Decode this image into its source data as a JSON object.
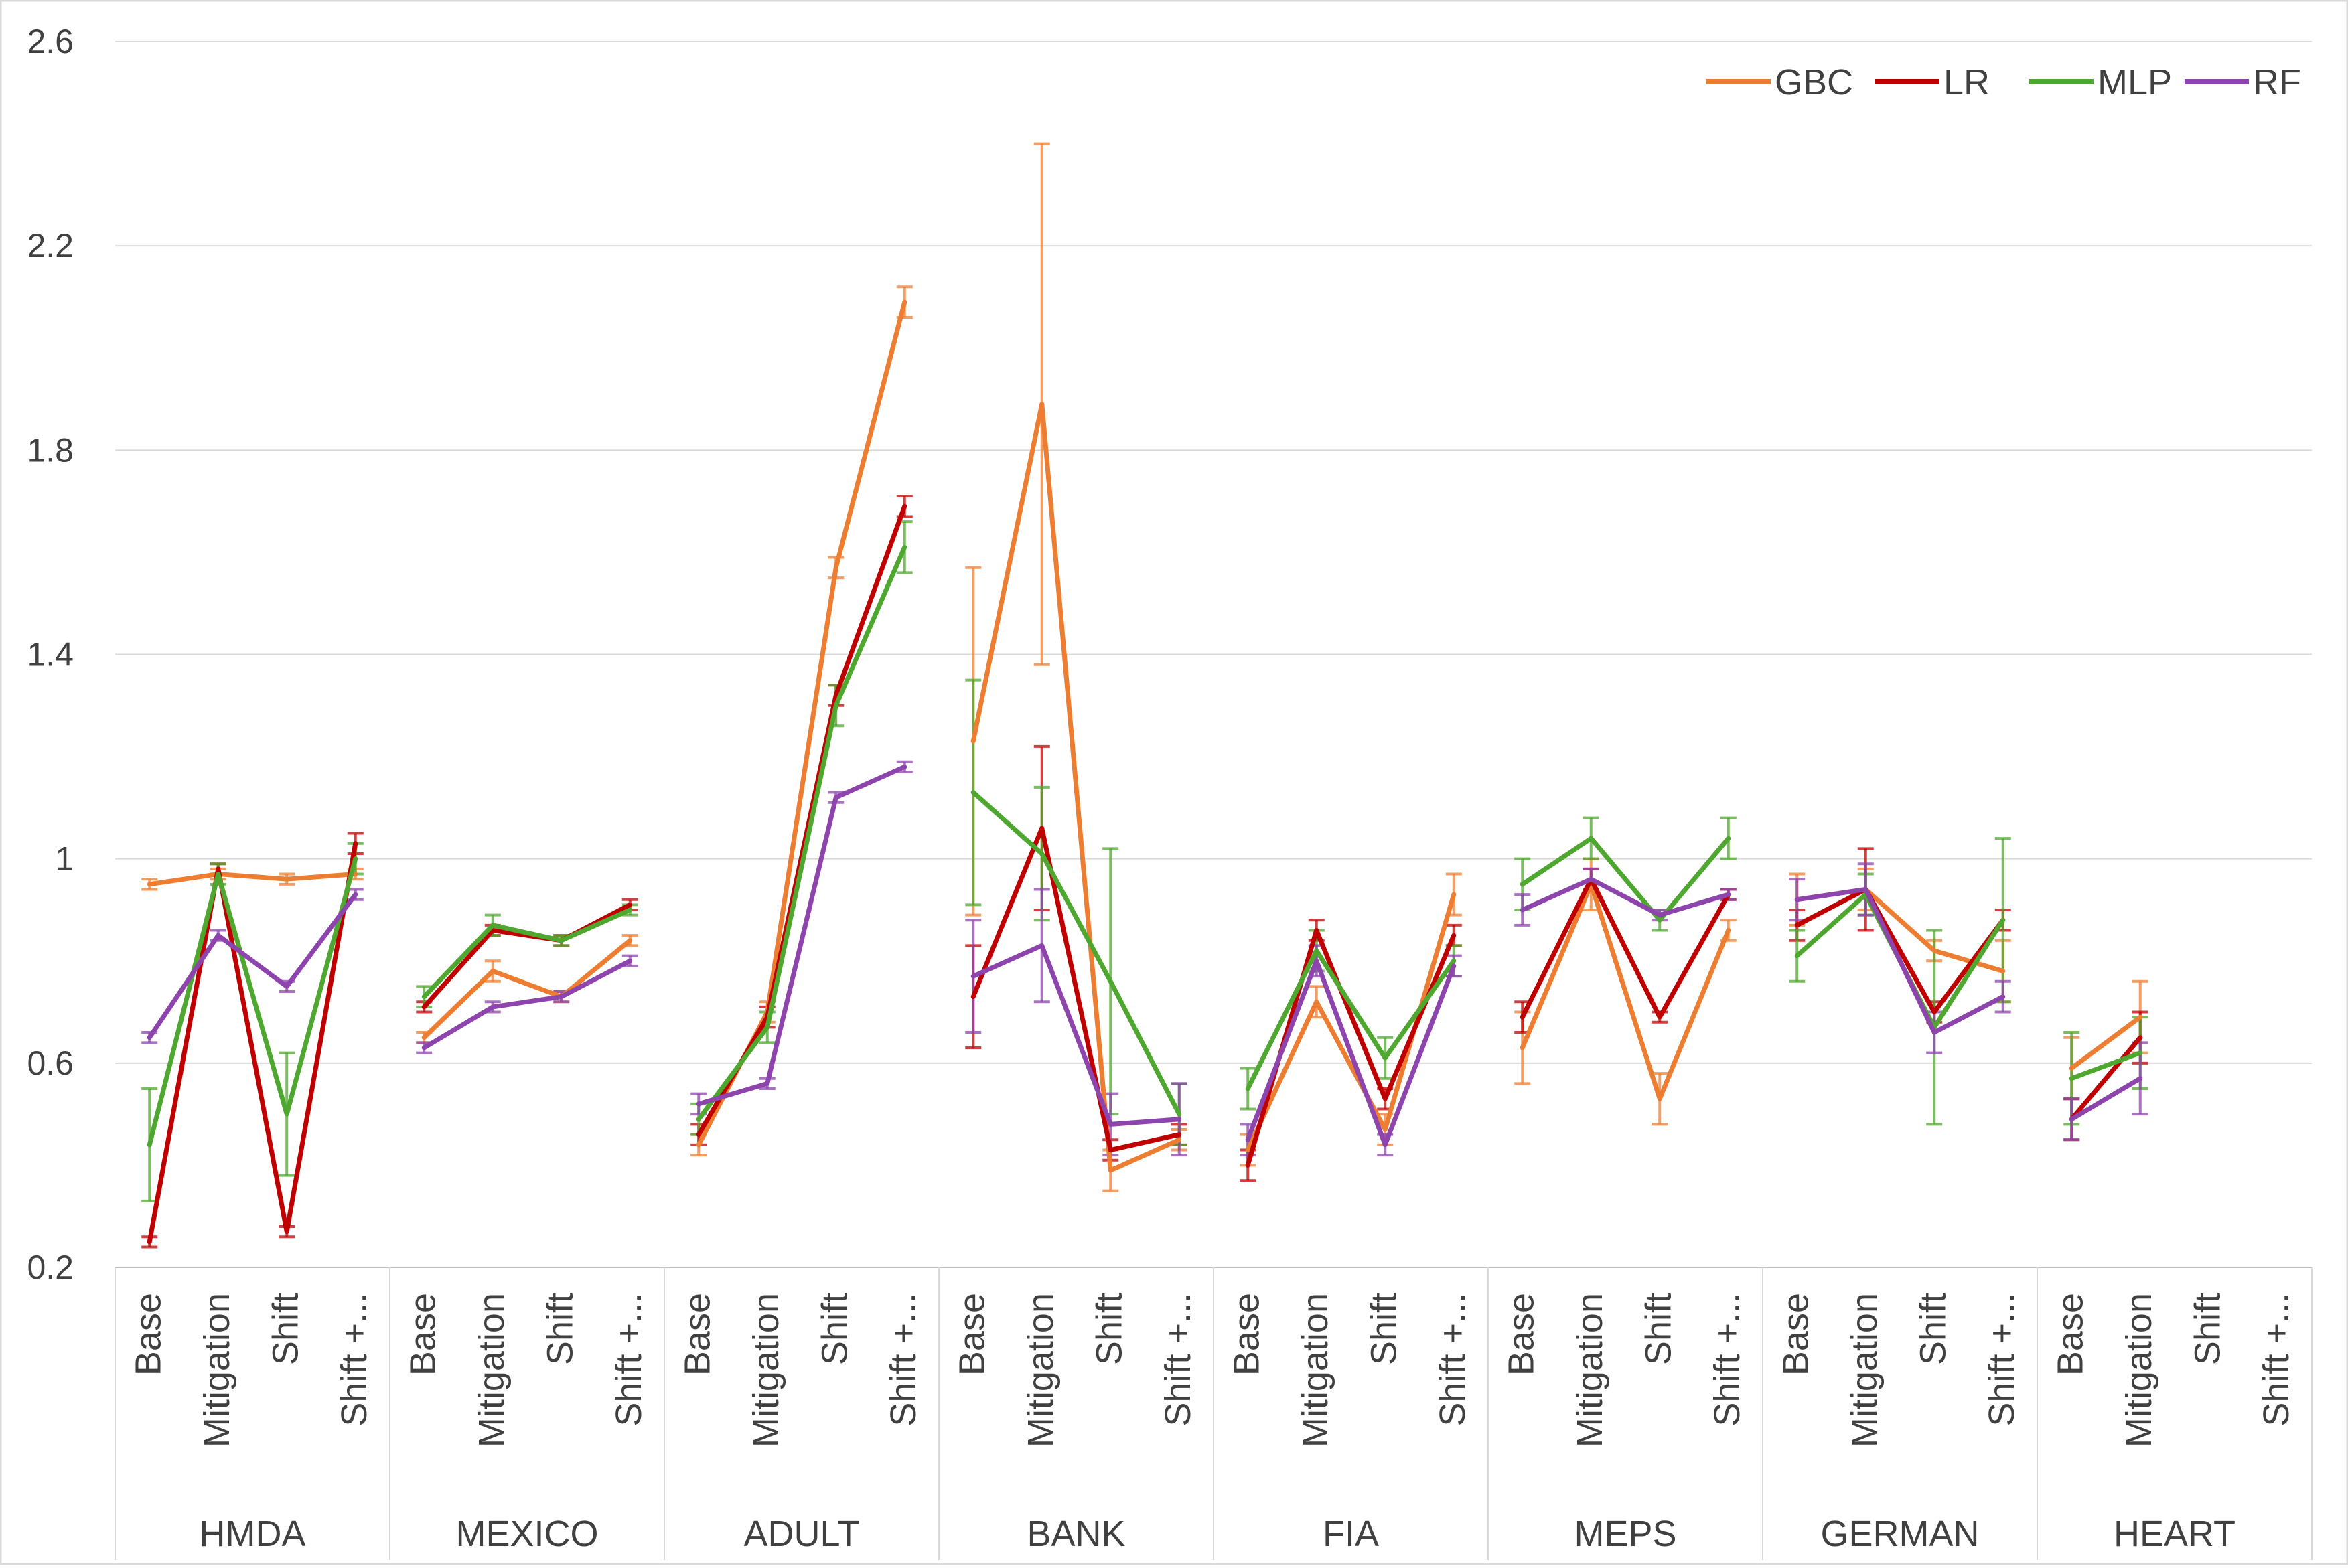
{
  "chart_data": {
    "type": "line",
    "title": "",
    "xlabel": "",
    "ylabel": "",
    "ylim": [
      0.2,
      2.6
    ],
    "y_ticks": [
      "0.2",
      "0.6",
      "1",
      "1.4",
      "1.8",
      "2.2",
      "2.6"
    ],
    "grid": "horizontal",
    "legend_position": "top-right",
    "sub_categories": [
      "Base",
      "Mitigation",
      "Shift",
      "Shift +..."
    ],
    "groups": [
      "HMDA",
      "MEXICO",
      "ADULT",
      "BANK",
      "FIA",
      "MEPS",
      "GERMAN",
      "HEART"
    ],
    "series": [
      {
        "name": "GBC",
        "color": "#ED7D31",
        "values": [
          [
            0.95,
            0.97,
            0.96,
            0.97
          ],
          [
            0.65,
            0.78,
            0.73,
            0.84
          ],
          [
            0.44,
            0.7,
            1.57,
            2.09
          ],
          [
            1.23,
            1.89,
            0.39,
            0.45
          ],
          [
            0.43,
            0.72,
            0.47,
            0.93
          ],
          [
            0.63,
            0.95,
            0.53,
            0.86
          ],
          [
            0.92,
            0.94,
            0.82,
            0.78
          ],
          [
            0.59,
            0.69,
            null,
            null
          ]
        ],
        "errors": [
          [
            0.01,
            0.01,
            0.01,
            0.01
          ],
          [
            0.01,
            0.02,
            0.01,
            0.01
          ],
          [
            0.02,
            0.02,
            0.02,
            0.03
          ],
          [
            0.34,
            0.51,
            0.04,
            0.02
          ],
          [
            0.03,
            0.03,
            0.03,
            0.04
          ],
          [
            0.07,
            0.05,
            0.05,
            0.02
          ],
          [
            0.05,
            0.04,
            0.02,
            0.06
          ],
          [
            0.06,
            0.07,
            null,
            null
          ]
        ]
      },
      {
        "name": "LR",
        "color": "#C00000",
        "values": [
          [
            0.25,
            0.98,
            0.27,
            1.03
          ],
          [
            0.71,
            0.86,
            0.84,
            0.91
          ],
          [
            0.46,
            0.69,
            1.32,
            1.69
          ],
          [
            0.73,
            1.06,
            0.43,
            0.46
          ],
          [
            0.4,
            0.86,
            0.53,
            0.85
          ],
          [
            0.69,
            0.96,
            0.69,
            0.93
          ],
          [
            0.87,
            0.94,
            0.7,
            0.88
          ],
          [
            0.49,
            0.65,
            null,
            null
          ]
        ],
        "errors": [
          [
            0.01,
            0.01,
            0.01,
            0.02
          ],
          [
            0.01,
            0.01,
            0.01,
            0.01
          ],
          [
            0.02,
            0.02,
            0.02,
            0.02
          ],
          [
            0.1,
            0.16,
            0.02,
            0.02
          ],
          [
            0.03,
            0.02,
            0.02,
            0.02
          ],
          [
            0.03,
            0.02,
            0.01,
            0.01
          ],
          [
            0.03,
            0.08,
            0.02,
            0.02
          ],
          [
            0.04,
            0.05,
            null,
            null
          ]
        ]
      },
      {
        "name": "MLP",
        "color": "#4EA72E",
        "values": [
          [
            0.44,
            0.97,
            0.5,
            1.0
          ],
          [
            0.73,
            0.87,
            0.84,
            0.9
          ],
          [
            0.49,
            0.67,
            1.3,
            1.61
          ],
          [
            1.13,
            1.01,
            0.76,
            0.5
          ],
          [
            0.55,
            0.82,
            0.61,
            0.8
          ],
          [
            0.95,
            1.04,
            0.88,
            1.04
          ],
          [
            0.81,
            0.93,
            0.67,
            0.88
          ],
          [
            0.57,
            0.62,
            null,
            null
          ]
        ],
        "errors": [
          [
            0.11,
            0.02,
            0.12,
            0.03
          ],
          [
            0.02,
            0.02,
            0.01,
            0.01
          ],
          [
            0.03,
            0.03,
            0.04,
            0.05
          ],
          [
            0.22,
            0.13,
            0.26,
            0.06
          ],
          [
            0.04,
            0.04,
            0.04,
            0.03
          ],
          [
            0.05,
            0.04,
            0.02,
            0.04
          ],
          [
            0.05,
            0.04,
            0.19,
            0.16
          ],
          [
            0.09,
            0.07,
            null,
            null
          ]
        ]
      },
      {
        "name": "RF",
        "color": "#8E44AD",
        "values": [
          [
            0.65,
            0.85,
            0.75,
            0.93
          ],
          [
            0.63,
            0.71,
            0.73,
            0.8
          ],
          [
            0.52,
            0.56,
            1.12,
            1.18
          ],
          [
            0.77,
            0.83,
            0.48,
            0.49
          ],
          [
            0.45,
            0.8,
            0.44,
            0.79
          ],
          [
            0.9,
            0.96,
            0.89,
            0.93
          ],
          [
            0.92,
            0.94,
            0.66,
            0.73
          ],
          [
            0.49,
            0.57,
            null,
            null
          ]
        ],
        "errors": [
          [
            0.01,
            0.01,
            0.01,
            0.01
          ],
          [
            0.01,
            0.01,
            0.01,
            0.01
          ],
          [
            0.02,
            0.01,
            0.01,
            0.01
          ],
          [
            0.11,
            0.11,
            0.06,
            0.07
          ],
          [
            0.03,
            0.03,
            0.02,
            0.02
          ],
          [
            0.03,
            0.02,
            0.01,
            0.01
          ],
          [
            0.04,
            0.05,
            0.04,
            0.03
          ],
          [
            0.04,
            0.07,
            null,
            null
          ]
        ]
      }
    ]
  }
}
